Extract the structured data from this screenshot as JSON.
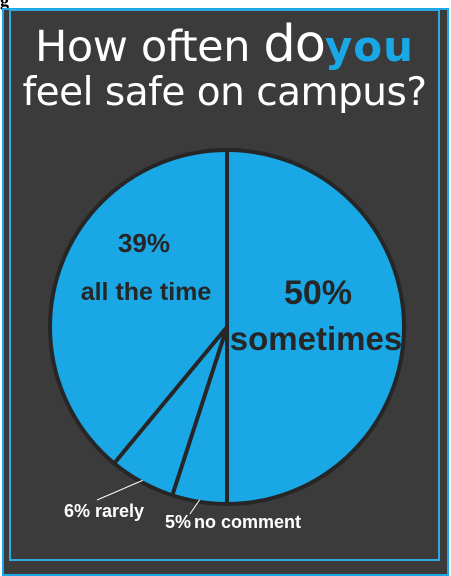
{
  "header": {
    "cropped_title": "g"
  },
  "headline": {
    "line1_start": "How often ",
    "line1_do": "do",
    "line1_you": "you",
    "line2": "feel safe on campus?"
  },
  "colors": {
    "background": "#3b3b3b",
    "accent": "#1aa7e6",
    "slice": "#1aa7e6",
    "divider": "#262626",
    "text_dark": "#262626",
    "text_light": "#ffffff"
  },
  "chart_data": {
    "type": "pie",
    "title": "How often do you feel safe on campus?",
    "slices": [
      {
        "pct_label": "50%",
        "name": "sometimes",
        "value": 50,
        "color": "#1aa7e6"
      },
      {
        "pct_label": "5%",
        "name": "no comment",
        "value": 5,
        "color": "#1aa7e6"
      },
      {
        "pct_label": "6%",
        "name": "rarely",
        "value": 6,
        "color": "#1aa7e6"
      },
      {
        "pct_label": "39%",
        "name": "all the time",
        "value": 39,
        "color": "#1aa7e6"
      }
    ],
    "start_angle": "12 o'clock",
    "direction": "clockwise",
    "legend": "none"
  }
}
